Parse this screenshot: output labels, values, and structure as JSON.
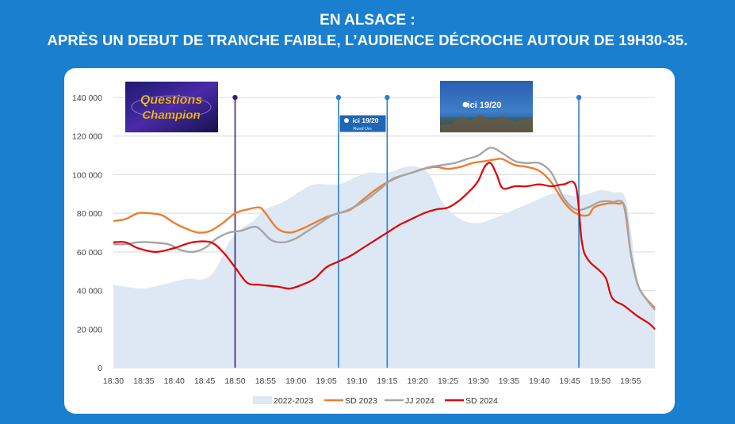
{
  "header": {
    "title_line1": "EN ALSACE :",
    "title_line2": "APRÈS UN DEBUT DE TRANCHE FAIBLE, L’AUDIENCE DÉCROCHE AUTOUR DE 19H30-35."
  },
  "colors": {
    "background": "#1a7fcf",
    "area_2022_2023": "#dde8f4",
    "sd_2023": "#ed7d31",
    "jj_2024": "#a5a5a5",
    "sd_2024": "#e00000",
    "marker_purple": "#3c1f78",
    "marker_blue": "#2a7fcf"
  },
  "thumbnails": {
    "questions": {
      "icon": "questions-pour-un-champion-logo",
      "label": "Questions pour un champion"
    },
    "rund_um": {
      "icon": "ici-19-20-rund-um-logo",
      "label_top": "ici 19/20",
      "label_bottom": "Rund Um"
    },
    "ici_1920": {
      "icon": "ici-19-20-logo",
      "label": "ici 19/20"
    }
  },
  "chart_data": {
    "type": "line",
    "ylim": [
      0,
      140000
    ],
    "yticks": [
      0,
      20000,
      40000,
      60000,
      80000,
      100000,
      120000,
      140000
    ],
    "ytick_labels": [
      "0",
      "20 000",
      "40 000",
      "60 000",
      "80 000",
      "100 000",
      "120 000",
      "140 000"
    ],
    "xlim": [
      0,
      89
    ],
    "xtick_labels": [
      "18:30",
      "18:35",
      "18:40",
      "18:45",
      "18:50",
      "18:55",
      "19:00",
      "19:05",
      "19:10",
      "19:15",
      "19:20",
      "19:25",
      "19:30",
      "19:35",
      "19:40",
      "19:45",
      "19:50",
      "19:55"
    ],
    "xtick_positions": [
      0,
      5,
      10,
      15,
      20,
      25,
      30,
      35,
      40,
      45,
      50,
      55,
      60,
      65,
      70,
      75,
      80,
      85
    ],
    "vertical_markers": [
      {
        "x": 20,
        "color": "#3c1f78"
      },
      {
        "x": 37,
        "color": "#2a7fcf"
      },
      {
        "x": 45,
        "color": "#2a7fcf"
      },
      {
        "x": 76.5,
        "color": "#2a7fcf"
      }
    ],
    "series": [
      {
        "name": "2022-2023",
        "kind": "area",
        "points": [
          [
            0,
            43000
          ],
          [
            2,
            42000
          ],
          [
            5,
            41000
          ],
          [
            8,
            43000
          ],
          [
            12,
            46000
          ],
          [
            15,
            46000
          ],
          [
            17,
            52000
          ],
          [
            19,
            65000
          ],
          [
            21,
            72000
          ],
          [
            23,
            76000
          ],
          [
            25,
            82000
          ],
          [
            28,
            86000
          ],
          [
            31,
            92000
          ],
          [
            33,
            95000
          ],
          [
            37,
            95000
          ],
          [
            40,
            99000
          ],
          [
            42,
            101000
          ],
          [
            45,
            101000
          ],
          [
            48,
            104000
          ],
          [
            50,
            104000
          ],
          [
            52,
            100000
          ],
          [
            54,
            86000
          ],
          [
            57,
            77000
          ],
          [
            60,
            75000
          ],
          [
            63,
            78000
          ],
          [
            66,
            82000
          ],
          [
            69,
            86000
          ],
          [
            72,
            90000
          ],
          [
            74,
            90000
          ],
          [
            76,
            89000
          ],
          [
            78,
            90000
          ],
          [
            80,
            92000
          ],
          [
            82,
            91000
          ],
          [
            84,
            89000
          ],
          [
            85,
            72000
          ],
          [
            86,
            48000
          ],
          [
            87,
            38000
          ],
          [
            89,
            30000
          ]
        ]
      },
      {
        "name": "SD 2023",
        "kind": "line",
        "points": [
          [
            0,
            76000
          ],
          [
            2,
            77000
          ],
          [
            4,
            80000
          ],
          [
            6,
            80000
          ],
          [
            8,
            79000
          ],
          [
            10,
            75000
          ],
          [
            12,
            72000
          ],
          [
            14,
            70000
          ],
          [
            16,
            71000
          ],
          [
            18,
            75000
          ],
          [
            20,
            80000
          ],
          [
            22,
            82000
          ],
          [
            24,
            83000
          ],
          [
            25,
            80000
          ],
          [
            27,
            72000
          ],
          [
            29,
            70000
          ],
          [
            31,
            72000
          ],
          [
            33,
            75000
          ],
          [
            35,
            78000
          ],
          [
            37,
            80000
          ],
          [
            39,
            82000
          ],
          [
            41,
            87000
          ],
          [
            43,
            92000
          ],
          [
            45,
            96000
          ],
          [
            47,
            99000
          ],
          [
            49,
            101000
          ],
          [
            51,
            103000
          ],
          [
            53,
            104000
          ],
          [
            55,
            103000
          ],
          [
            57,
            104000
          ],
          [
            59,
            106000
          ],
          [
            61,
            107000
          ],
          [
            63,
            108000
          ],
          [
            64,
            108000
          ],
          [
            66,
            105000
          ],
          [
            68,
            104000
          ],
          [
            70,
            102000
          ],
          [
            72,
            96000
          ],
          [
            74,
            86000
          ],
          [
            76,
            80000
          ],
          [
            78,
            79000
          ],
          [
            79,
            83000
          ],
          [
            81,
            85000
          ],
          [
            83,
            85000
          ],
          [
            84,
            83000
          ],
          [
            85,
            60000
          ],
          [
            86,
            45000
          ],
          [
            87,
            38000
          ],
          [
            89,
            31000
          ]
        ]
      },
      {
        "name": "JJ 2024",
        "kind": "line",
        "points": [
          [
            0,
            64000
          ],
          [
            2,
            64000
          ],
          [
            4,
            65000
          ],
          [
            6,
            65000
          ],
          [
            9,
            64000
          ],
          [
            11,
            61000
          ],
          [
            13,
            60000
          ],
          [
            15,
            62000
          ],
          [
            17,
            67000
          ],
          [
            19,
            70000
          ],
          [
            21,
            71000
          ],
          [
            23,
            73000
          ],
          [
            24,
            72000
          ],
          [
            26,
            66000
          ],
          [
            28,
            65000
          ],
          [
            30,
            67000
          ],
          [
            32,
            71000
          ],
          [
            34,
            75000
          ],
          [
            36,
            79000
          ],
          [
            38,
            81000
          ],
          [
            40,
            84000
          ],
          [
            42,
            88000
          ],
          [
            44,
            93000
          ],
          [
            46,
            98000
          ],
          [
            48,
            100000
          ],
          [
            50,
            102000
          ],
          [
            52,
            104000
          ],
          [
            54,
            105000
          ],
          [
            56,
            106000
          ],
          [
            58,
            108000
          ],
          [
            60,
            110000
          ],
          [
            62,
            114000
          ],
          [
            64,
            111000
          ],
          [
            66,
            107000
          ],
          [
            68,
            106000
          ],
          [
            70,
            106000
          ],
          [
            72,
            101000
          ],
          [
            74,
            88000
          ],
          [
            76,
            82000
          ],
          [
            78,
            83000
          ],
          [
            80,
            86000
          ],
          [
            82,
            86000
          ],
          [
            84,
            84000
          ],
          [
            85,
            60000
          ],
          [
            86,
            45000
          ],
          [
            87,
            38000
          ],
          [
            89,
            30000
          ]
        ]
      },
      {
        "name": "SD 2024",
        "kind": "line",
        "points": [
          [
            0,
            65000
          ],
          [
            2,
            65000
          ],
          [
            4,
            62000
          ],
          [
            7,
            60000
          ],
          [
            10,
            62000
          ],
          [
            13,
            65000
          ],
          [
            16,
            65000
          ],
          [
            18,
            60000
          ],
          [
            20,
            52000
          ],
          [
            22,
            44000
          ],
          [
            24,
            43000
          ],
          [
            27,
            42000
          ],
          [
            29,
            41000
          ],
          [
            31,
            43000
          ],
          [
            33,
            46000
          ],
          [
            35,
            52000
          ],
          [
            37,
            55000
          ],
          [
            39,
            58000
          ],
          [
            41,
            62000
          ],
          [
            43,
            66000
          ],
          [
            45,
            70000
          ],
          [
            47,
            74000
          ],
          [
            49,
            77000
          ],
          [
            51,
            80000
          ],
          [
            53,
            82000
          ],
          [
            55,
            83000
          ],
          [
            57,
            87000
          ],
          [
            59,
            93000
          ],
          [
            60,
            97000
          ],
          [
            61,
            104000
          ],
          [
            62,
            106000
          ],
          [
            63,
            100000
          ],
          [
            64,
            93000
          ],
          [
            66,
            94000
          ],
          [
            68,
            94000
          ],
          [
            70,
            95000
          ],
          [
            72,
            94000
          ],
          [
            74,
            95000
          ],
          [
            76,
            94000
          ],
          [
            77,
            65000
          ],
          [
            78,
            56000
          ],
          [
            80,
            50000
          ],
          [
            81,
            46000
          ],
          [
            82,
            36000
          ],
          [
            84,
            32000
          ],
          [
            86,
            27000
          ],
          [
            88,
            23000
          ],
          [
            89,
            20000
          ]
        ]
      }
    ]
  }
}
